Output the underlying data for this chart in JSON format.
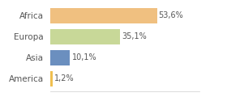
{
  "categories": [
    "Africa",
    "Europa",
    "Asia",
    "America"
  ],
  "values": [
    53.6,
    35.1,
    10.1,
    1.2
  ],
  "labels": [
    "53,6%",
    "35,1%",
    "10,1%",
    "1,2%"
  ],
  "bar_colors": [
    "#f0c080",
    "#c8d898",
    "#6b8fbf",
    "#f0c050"
  ],
  "background_color": "#ffffff",
  "xlim": [
    0,
    75
  ],
  "label_fontsize": 7,
  "tick_fontsize": 7.5
}
